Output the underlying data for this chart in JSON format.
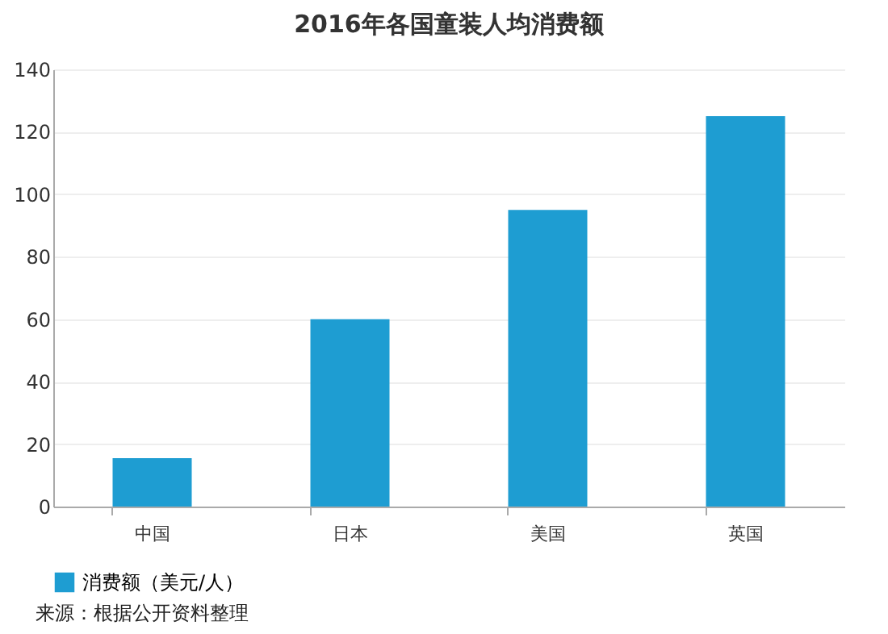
{
  "chart_data": {
    "type": "bar",
    "title": "2016年各国童装人均消费额",
    "categories": [
      "中国",
      "日本",
      "美国",
      "英国"
    ],
    "series": [
      {
        "name": "消费额（美元/人）",
        "color": "#1e9dd2",
        "values": [
          15.5,
          60,
          95,
          125
        ]
      }
    ],
    "ylim": [
      0,
      140
    ],
    "yticks": [
      0,
      20,
      40,
      60,
      80,
      100,
      120,
      140
    ],
    "grid": "y",
    "legend": "bottom",
    "annotations": [
      "来源：根据公开资料整理"
    ]
  }
}
